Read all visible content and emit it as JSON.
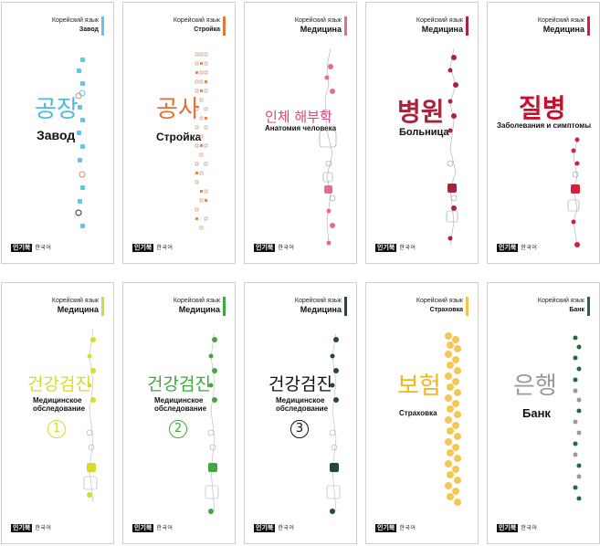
{
  "cards": [
    {
      "series": "Корейский язык",
      "subject": "Завод",
      "accent": "#5ec6e6",
      "title_ko": "공장",
      "title_ru": "Завод",
      "ko_color": "#4fb8de",
      "publisher_mark": "인기북",
      "publisher_name": "한국어"
    },
    {
      "series": "Корейский язык",
      "subject": "Стройка",
      "accent": "#e07a3a",
      "title_ko": "공사",
      "title_ru": "Стройка",
      "ko_color": "#e0703a",
      "publisher_mark": "인기북",
      "publisher_name": "한국어"
    },
    {
      "series": "Корейский язык",
      "subject": "Медицина",
      "accent": "#e86b8e",
      "title_ko": "인체 해부학",
      "title_ru": "Анатомия человека",
      "ko_color": "#e0447a",
      "publisher_mark": "인기북",
      "publisher_name": "한국어"
    },
    {
      "series": "Корейский язык",
      "subject": "Медицина",
      "accent": "#a8243a",
      "title_ko": "병원",
      "title_ru": "Больница",
      "ko_color": "#a8243a",
      "publisher_mark": "인기북",
      "publisher_name": "한국어"
    },
    {
      "series": "Корейский язык",
      "subject": "Медицина",
      "accent": "#d41f3c",
      "title_ko": "질병",
      "title_ru": "Заболевания и симптомы",
      "ko_color": "#c8102e",
      "publisher_mark": "인기북",
      "publisher_name": "한국어"
    },
    {
      "series": "Корейский язык",
      "subject": "Медицина",
      "accent": "#dada2a",
      "title_ko": "건강검진",
      "title_ru": "Медицинское обследование",
      "ko_color": "#dada2a",
      "number": "1",
      "publisher_mark": "인기북",
      "publisher_name": "한국어"
    },
    {
      "series": "Корейский язык",
      "subject": "Медицина",
      "accent": "#3fa83f",
      "title_ko": "건강검진",
      "title_ru": "Медицинское обследование",
      "ko_color": "#3fa83f",
      "number": "2",
      "publisher_mark": "인기북",
      "publisher_name": "한국어"
    },
    {
      "series": "Корейский язык",
      "subject": "Медицина",
      "accent": "#1e4d2b",
      "title_ko": "건강검진",
      "title_ru": "Медицинское обследование",
      "ko_color": "#111111",
      "number": "3",
      "publisher_mark": "인기북",
      "publisher_name": "한국어"
    },
    {
      "series": "Корейский язык",
      "subject": "Страховка",
      "accent": "#f5c242",
      "title_ko": "보험",
      "title_ru": "Страховка",
      "ko_color": "#f2b817",
      "publisher_mark": "인기북",
      "publisher_name": "한국어"
    },
    {
      "series": "Корейский язык",
      "subject": "Банк",
      "accent": "#1e6b3a",
      "title_ko": "은행",
      "title_ru": "Банк",
      "ko_color": "#9a9a9a",
      "publisher_mark": "인기북",
      "publisher_name": "한국어"
    }
  ]
}
